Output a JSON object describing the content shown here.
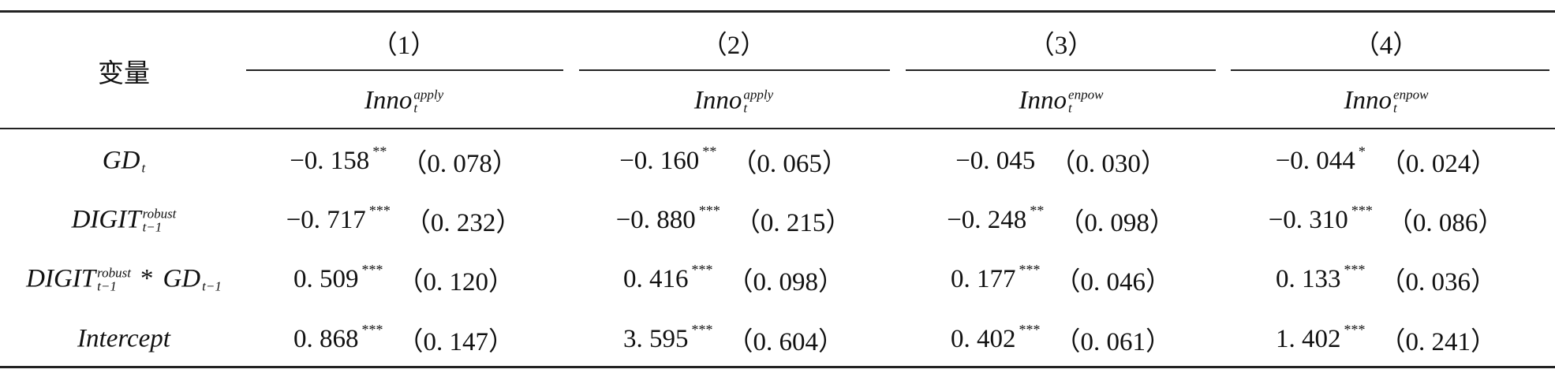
{
  "header": {
    "variable": "变量",
    "columns": [
      {
        "number": "（1）",
        "var": {
          "base": "Inno",
          "sub": "t",
          "sup": "apply"
        }
      },
      {
        "number": "（2）",
        "var": {
          "base": "Inno",
          "sub": "t",
          "sup": "apply"
        }
      },
      {
        "number": "（3）",
        "var": {
          "base": "Inno",
          "sub": "t",
          "sup": "enpow"
        }
      },
      {
        "number": "（4）",
        "var": {
          "base": "Inno",
          "sub": "t",
          "sup": "enpow"
        }
      }
    ]
  },
  "rows": [
    {
      "variable": [
        {
          "base": "GD",
          "sub": "t"
        }
      ],
      "cells": [
        {
          "coef": "−0. 158",
          "stars": "**",
          "se": "（0. 078）"
        },
        {
          "coef": "−0. 160",
          "stars": "**",
          "se": "（0. 065）"
        },
        {
          "coef": "−0. 045",
          "se": "（0. 030）"
        },
        {
          "coef": "−0. 044",
          "stars": "*",
          "se": "（0. 024）"
        }
      ]
    },
    {
      "variable": [
        {
          "base": "DIGIT",
          "sub": "t−1",
          "sup": "robust"
        }
      ],
      "cells": [
        {
          "coef": "−0. 717",
          "stars": "***",
          "se": "（0. 232）"
        },
        {
          "coef": "−0. 880",
          "stars": "***",
          "se": "（0. 215）"
        },
        {
          "coef": "−0. 248",
          "stars": "**",
          "se": "（0. 098）"
        },
        {
          "coef": "−0. 310",
          "stars": "***",
          "se": "（0. 086）"
        }
      ]
    },
    {
      "variable": [
        {
          "base": "DIGIT",
          "sub": "t−1",
          "sup": "robust"
        },
        {
          "op": "*"
        },
        {
          "base": "GD",
          "sub": "t−1"
        }
      ],
      "cells": [
        {
          "coef": "0. 509",
          "stars": "***",
          "se": "（0. 120）"
        },
        {
          "coef": "0. 416",
          "stars": "***",
          "se": "（0. 098）"
        },
        {
          "coef": "0. 177",
          "stars": "***",
          "se": "（0. 046）"
        },
        {
          "coef": "0. 133",
          "stars": "***",
          "se": "（0. 036）"
        }
      ]
    },
    {
      "variable": [
        {
          "base": "Intercept"
        }
      ],
      "cells": [
        {
          "coef": "0. 868",
          "stars": "***",
          "se": "（0. 147）"
        },
        {
          "coef": "3. 595",
          "stars": "***",
          "se": "（0. 604）"
        },
        {
          "coef": "0. 402",
          "stars": "***",
          "se": "（0. 061）"
        },
        {
          "coef": "1. 402",
          "stars": "***",
          "se": "（0. 241）"
        }
      ]
    }
  ]
}
